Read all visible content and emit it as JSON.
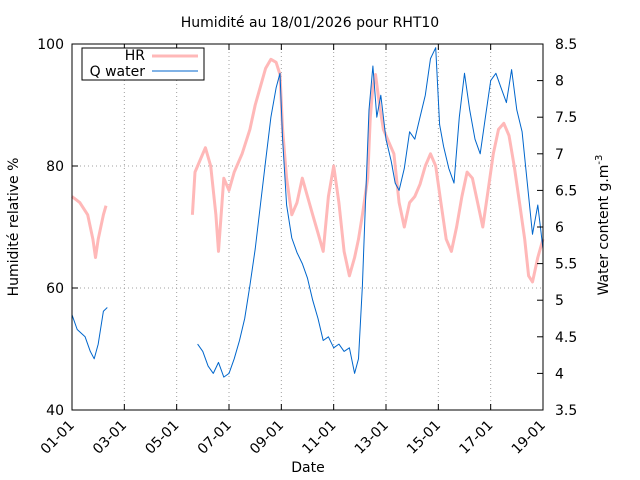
{
  "chart_data": {
    "type": "line",
    "title": "Humidité au 18/01/2026 pour RHT10",
    "xlabel": "Date",
    "ylabel_left": "Humidité relative %",
    "ylabel_right_main": "Water content g.m",
    "ylabel_right_sup": "-3",
    "x_ticks": [
      "01-01",
      "03-01",
      "05-01",
      "07-01",
      "09-01",
      "11-01",
      "13-01",
      "15-01",
      "17-01",
      "19-01"
    ],
    "x_range_days": [
      1,
      19
    ],
    "y_left": {
      "min": 40,
      "max": 100,
      "ticks": [
        "40",
        "60",
        "80",
        "100"
      ]
    },
    "y_right": {
      "min": 3.5,
      "max": 8.5,
      "ticks": [
        "3.5",
        "4",
        "4.5",
        "5",
        "5.5",
        "6",
        "6.5",
        "7",
        "7.5",
        "8",
        "8.5"
      ]
    },
    "grid": true,
    "legend_position": "top-left",
    "series": [
      {
        "name": "HR",
        "axis": "left",
        "color": "#ffb8b8",
        "segments": [
          [
            [
              1.0,
              75
            ],
            [
              1.3,
              74
            ],
            [
              1.6,
              72
            ],
            [
              1.8,
              68
            ],
            [
              1.9,
              65
            ],
            [
              2.0,
              68
            ],
            [
              2.2,
              72
            ],
            [
              2.3,
              73.5
            ]
          ],
          [
            [
              5.6,
              72
            ],
            [
              5.7,
              79
            ],
            [
              5.9,
              81
            ],
            [
              6.1,
              83
            ],
            [
              6.3,
              80
            ],
            [
              6.5,
              72
            ],
            [
              6.6,
              66
            ],
            [
              6.8,
              78
            ],
            [
              7.0,
              76
            ],
            [
              7.2,
              79
            ],
            [
              7.5,
              82
            ],
            [
              7.8,
              86
            ],
            [
              8.0,
              90
            ],
            [
              8.2,
              93
            ],
            [
              8.4,
              96
            ],
            [
              8.6,
              97.5
            ],
            [
              8.8,
              97
            ],
            [
              8.95,
              95
            ],
            [
              9.05,
              86
            ],
            [
              9.2,
              78
            ],
            [
              9.4,
              72
            ],
            [
              9.6,
              74
            ],
            [
              9.8,
              78
            ],
            [
              10.0,
              75
            ],
            [
              10.2,
              72
            ],
            [
              10.4,
              69
            ],
            [
              10.6,
              66
            ],
            [
              10.8,
              75
            ],
            [
              11.0,
              80
            ],
            [
              11.2,
              74
            ],
            [
              11.4,
              66
            ],
            [
              11.6,
              62
            ],
            [
              11.8,
              65
            ],
            [
              11.95,
              68
            ],
            [
              12.1,
              72
            ],
            [
              12.3,
              78
            ],
            [
              12.4,
              88
            ],
            [
              12.5,
              93
            ],
            [
              12.6,
              95
            ],
            [
              12.75,
              90
            ],
            [
              12.9,
              86
            ],
            [
              13.1,
              84
            ],
            [
              13.3,
              82
            ],
            [
              13.5,
              74
            ],
            [
              13.7,
              70
            ],
            [
              13.9,
              74
            ],
            [
              14.1,
              75
            ],
            [
              14.3,
              77
            ],
            [
              14.5,
              80
            ],
            [
              14.7,
              82
            ],
            [
              14.9,
              80
            ],
            [
              15.1,
              74
            ],
            [
              15.3,
              68
            ],
            [
              15.5,
              66
            ],
            [
              15.7,
              70
            ],
            [
              15.9,
              75
            ],
            [
              16.1,
              79
            ],
            [
              16.3,
              78
            ],
            [
              16.5,
              74
            ],
            [
              16.7,
              70
            ],
            [
              16.9,
              76
            ],
            [
              17.1,
              82
            ],
            [
              17.3,
              86
            ],
            [
              17.5,
              87
            ],
            [
              17.7,
              85
            ],
            [
              17.9,
              80
            ],
            [
              18.1,
              74
            ],
            [
              18.3,
              68
            ],
            [
              18.45,
              62
            ],
            [
              18.6,
              61
            ],
            [
              18.8,
              65
            ],
            [
              19.0,
              68
            ]
          ]
        ]
      },
      {
        "name": "Q water",
        "axis": "right",
        "color": "#0066cc",
        "segments": [
          [
            [
              1.0,
              4.8
            ],
            [
              1.2,
              4.6
            ],
            [
              1.5,
              4.5
            ],
            [
              1.7,
              4.3
            ],
            [
              1.85,
              4.2
            ],
            [
              2.0,
              4.4
            ],
            [
              2.2,
              4.85
            ],
            [
              2.35,
              4.9
            ]
          ],
          [
            [
              5.8,
              4.4
            ],
            [
              6.0,
              4.3
            ],
            [
              6.2,
              4.1
            ],
            [
              6.4,
              4.0
            ],
            [
              6.6,
              4.15
            ],
            [
              6.8,
              3.95
            ],
            [
              7.0,
              4.0
            ],
            [
              7.2,
              4.2
            ],
            [
              7.4,
              4.45
            ],
            [
              7.6,
              4.75
            ],
            [
              7.8,
              5.2
            ],
            [
              8.0,
              5.7
            ],
            [
              8.2,
              6.3
            ],
            [
              8.4,
              6.9
            ],
            [
              8.6,
              7.5
            ],
            [
              8.8,
              7.9
            ],
            [
              8.95,
              8.1
            ],
            [
              9.05,
              7.2
            ],
            [
              9.2,
              6.3
            ],
            [
              9.4,
              5.85
            ],
            [
              9.6,
              5.65
            ],
            [
              9.8,
              5.5
            ],
            [
              10.0,
              5.3
            ],
            [
              10.2,
              5.0
            ],
            [
              10.4,
              4.75
            ],
            [
              10.6,
              4.45
            ],
            [
              10.8,
              4.5
            ],
            [
              11.0,
              4.35
            ],
            [
              11.2,
              4.4
            ],
            [
              11.4,
              4.3
            ],
            [
              11.6,
              4.35
            ],
            [
              11.8,
              4.0
            ],
            [
              11.95,
              4.2
            ],
            [
              12.1,
              5.2
            ],
            [
              12.2,
              6.2
            ],
            [
              12.35,
              7.6
            ],
            [
              12.5,
              8.2
            ],
            [
              12.65,
              7.5
            ],
            [
              12.8,
              7.8
            ],
            [
              13.0,
              7.2
            ],
            [
              13.2,
              6.9
            ],
            [
              13.35,
              6.6
            ],
            [
              13.5,
              6.5
            ],
            [
              13.7,
              6.8
            ],
            [
              13.9,
              7.3
            ],
            [
              14.1,
              7.2
            ],
            [
              14.3,
              7.5
            ],
            [
              14.5,
              7.8
            ],
            [
              14.7,
              8.3
            ],
            [
              14.9,
              8.45
            ],
            [
              15.05,
              7.4
            ],
            [
              15.2,
              7.1
            ],
            [
              15.4,
              6.8
            ],
            [
              15.6,
              6.6
            ],
            [
              15.8,
              7.5
            ],
            [
              16.0,
              8.1
            ],
            [
              16.2,
              7.6
            ],
            [
              16.4,
              7.2
            ],
            [
              16.6,
              7.0
            ],
            [
              16.8,
              7.5
            ],
            [
              17.0,
              8.0
            ],
            [
              17.2,
              8.1
            ],
            [
              17.4,
              7.9
            ],
            [
              17.6,
              7.7
            ],
            [
              17.8,
              8.15
            ],
            [
              18.0,
              7.6
            ],
            [
              18.2,
              7.3
            ],
            [
              18.4,
              6.6
            ],
            [
              18.6,
              5.9
            ],
            [
              18.8,
              6.3
            ],
            [
              19.0,
              5.7
            ]
          ]
        ]
      }
    ]
  }
}
